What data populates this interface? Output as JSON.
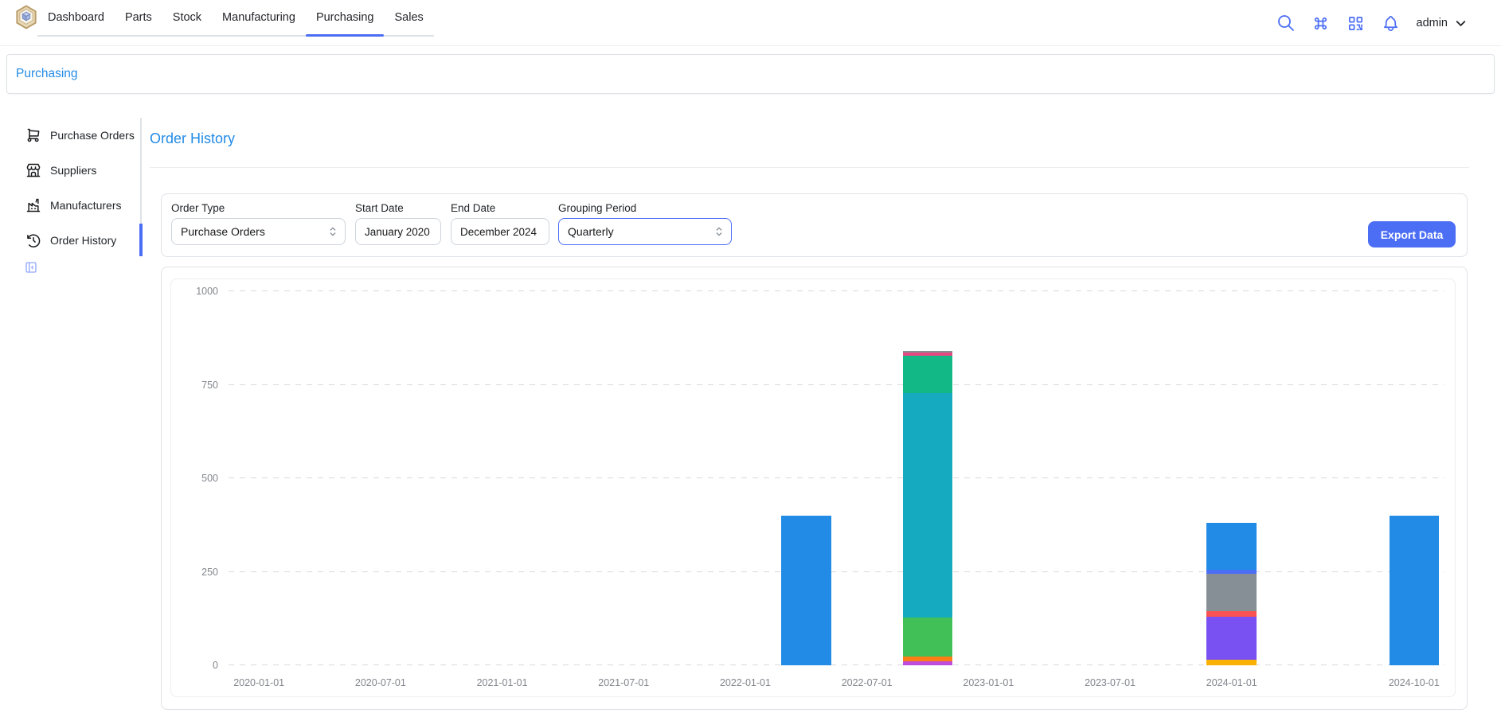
{
  "header": {
    "nav": [
      {
        "label": "Dashboard"
      },
      {
        "label": "Parts"
      },
      {
        "label": "Stock"
      },
      {
        "label": "Manufacturing"
      },
      {
        "label": "Purchasing",
        "active": true
      },
      {
        "label": "Sales"
      }
    ],
    "user": "admin"
  },
  "breadcrumb": {
    "label": "Purchasing"
  },
  "sidebar": {
    "items": [
      {
        "label": "Purchase Orders",
        "icon": "shopping-cart"
      },
      {
        "label": "Suppliers",
        "icon": "building-store"
      },
      {
        "label": "Manufacturers",
        "icon": "factory"
      },
      {
        "label": "Order History",
        "icon": "history-clock",
        "active": true
      }
    ]
  },
  "page": {
    "title": "Order History"
  },
  "filters": {
    "order_type": {
      "label": "Order Type",
      "value": "Purchase Orders"
    },
    "start_date": {
      "label": "Start Date",
      "value": "January 2020"
    },
    "end_date": {
      "label": "End Date",
      "value": "December 2024"
    },
    "grouping": {
      "label": "Grouping Period",
      "value": "Quarterly"
    },
    "export_label": "Export Data"
  },
  "colors": {
    "accent": "#4c6ef5",
    "link": "#228be6",
    "border": "#dee2e6",
    "axis_text": "#82858d"
  },
  "chart_data": {
    "type": "bar",
    "stacked": true,
    "title": "",
    "xlabel": "",
    "ylabel": "",
    "legend": "none",
    "grid": "dashed-horizontal",
    "ylim": [
      0,
      1000
    ],
    "yticks": [
      0,
      250,
      500,
      750,
      1000
    ],
    "x_categories": [
      "2020-01-01",
      "2020-04-01",
      "2020-07-01",
      "2020-10-01",
      "2021-01-01",
      "2021-04-01",
      "2021-07-01",
      "2021-10-01",
      "2022-01-01",
      "2022-04-01",
      "2022-07-01",
      "2022-10-01",
      "2023-01-01",
      "2023-04-01",
      "2023-07-01",
      "2023-10-01",
      "2024-01-01",
      "2024-04-01",
      "2024-07-01",
      "2024-10-01"
    ],
    "x_tick_labels_shown": [
      "2020-01-01",
      "2020-07-01",
      "2021-01-01",
      "2021-07-01",
      "2022-01-01",
      "2022-07-01",
      "2023-01-01",
      "2023-07-01",
      "2024-01-01",
      "2024-10-01"
    ],
    "bars": [
      {
        "x": "2022-04-01",
        "total": 400,
        "segments": [
          {
            "color": "#228be6",
            "value": 400
          }
        ]
      },
      {
        "x": "2022-10-01",
        "total": 840,
        "segments": [
          {
            "color": "#be4bdb",
            "value": 10
          },
          {
            "color": "#fd7e14",
            "value": 13
          },
          {
            "color": "#40c057",
            "value": 105
          },
          {
            "color": "#15aabf",
            "value": 600
          },
          {
            "color": "#12b886",
            "value": 100
          },
          {
            "color": "#e64980",
            "value": 8
          },
          {
            "color": "#868e96",
            "value": 4
          }
        ]
      },
      {
        "x": "2024-01-01",
        "total": 380,
        "segments": [
          {
            "color": "#fab005",
            "value": 15
          },
          {
            "color": "#7950f2",
            "value": 115
          },
          {
            "color": "#fa5252",
            "value": 15
          },
          {
            "color": "#868e96",
            "value": 100
          },
          {
            "color": "#4c6ef5",
            "value": 10
          },
          {
            "color": "#228be6",
            "value": 125
          }
        ]
      },
      {
        "x": "2024-10-01",
        "total": 400,
        "segments": [
          {
            "color": "#228be6",
            "value": 400
          }
        ]
      }
    ]
  }
}
